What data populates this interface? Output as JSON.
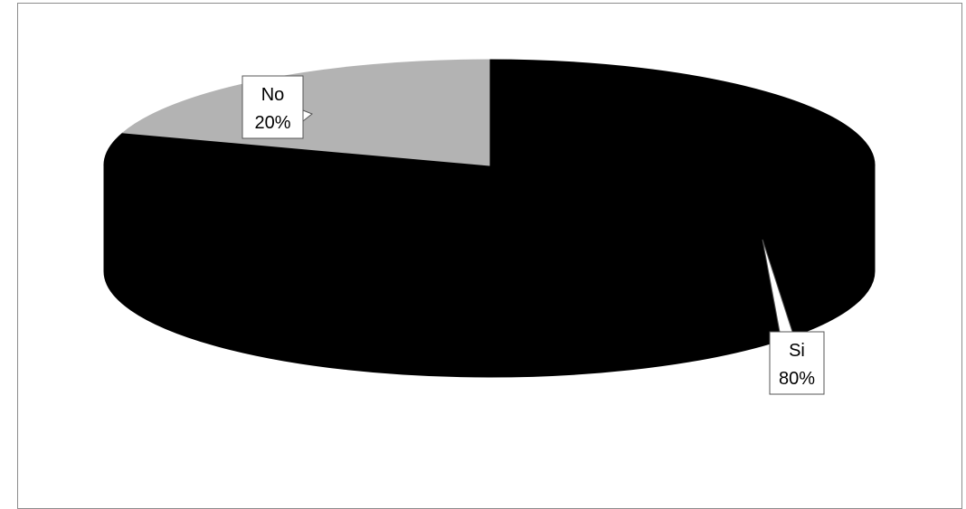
{
  "chart_data": {
    "type": "pie",
    "style": "3d",
    "title": "",
    "legend": "none",
    "categories": [
      "Si",
      "No"
    ],
    "values": [
      80,
      20
    ],
    "labels": [
      {
        "category": "Si",
        "percent": "80%"
      },
      {
        "category": "No",
        "percent": "20%"
      }
    ],
    "colors": {
      "Si": "#000000",
      "No": "#b3b3b3"
    }
  }
}
